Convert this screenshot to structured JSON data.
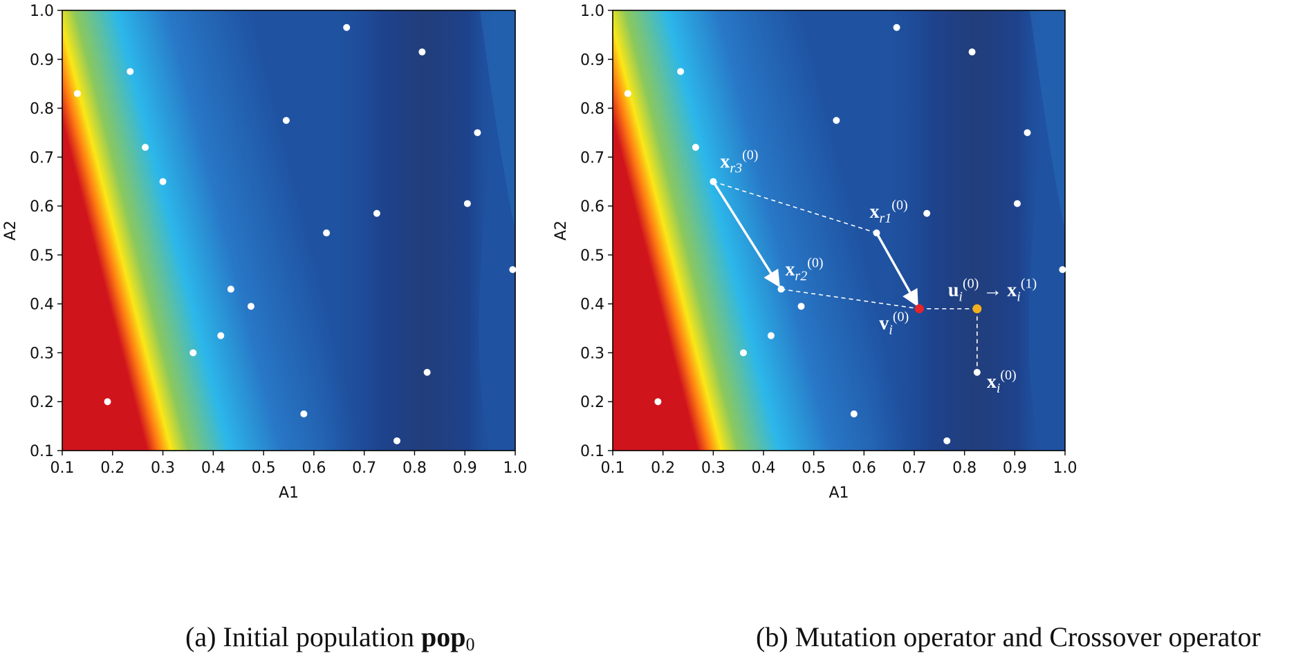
{
  "chart_data": [
    {
      "type": "scatter",
      "subtype": "contour-background",
      "panel": "a",
      "xlabel": "A1",
      "ylabel": "A2",
      "xlim": [
        0.1,
        1.0
      ],
      "ylim": [
        0.1,
        1.0
      ],
      "xticks": [
        "0.1",
        "0.2",
        "0.3",
        "0.4",
        "0.5",
        "0.6",
        "0.7",
        "0.8",
        "0.9",
        "1.0"
      ],
      "yticks": [
        "0.1",
        "0.2",
        "0.3",
        "0.4",
        "0.5",
        "0.6",
        "0.7",
        "0.8",
        "0.9",
        "1.0"
      ],
      "grid": false,
      "colormap": [
        "#d0141c",
        "#ff7d12",
        "#fbe717",
        "#8cc85c",
        "#2cb7ea",
        "#2877c6",
        "#1f53a2",
        "#1e3f88",
        "#223a74"
      ],
      "point_color": "#ffffff",
      "points": [
        [
          0.13,
          0.83
        ],
        [
          0.235,
          0.875
        ],
        [
          0.265,
          0.72
        ],
        [
          0.3,
          0.65
        ],
        [
          0.19,
          0.2
        ],
        [
          0.36,
          0.3
        ],
        [
          0.415,
          0.335
        ],
        [
          0.435,
          0.43
        ],
        [
          0.475,
          0.395
        ],
        [
          0.545,
          0.775
        ],
        [
          0.58,
          0.175
        ],
        [
          0.625,
          0.545
        ],
        [
          0.665,
          0.965
        ],
        [
          0.725,
          0.585
        ],
        [
          0.765,
          0.12
        ],
        [
          0.815,
          0.915
        ],
        [
          0.825,
          0.26
        ],
        [
          0.905,
          0.605
        ],
        [
          0.925,
          0.75
        ],
        [
          0.995,
          0.47
        ]
      ]
    },
    {
      "type": "scatter",
      "subtype": "contour-background",
      "panel": "b",
      "xlabel": "A1",
      "ylabel": "A2",
      "xlim": [
        0.1,
        1.0
      ],
      "ylim": [
        0.1,
        1.0
      ],
      "xticks": [
        "0.1",
        "0.2",
        "0.3",
        "0.4",
        "0.5",
        "0.6",
        "0.7",
        "0.8",
        "0.9",
        "1.0"
      ],
      "yticks": [
        "0.1",
        "0.2",
        "0.3",
        "0.4",
        "0.5",
        "0.6",
        "0.7",
        "0.8",
        "0.9",
        "1.0"
      ],
      "grid": false,
      "colormap": [
        "#d0141c",
        "#ff7d12",
        "#fbe717",
        "#8cc85c",
        "#2cb7ea",
        "#2877c6",
        "#1f53a2",
        "#1e3f88",
        "#223a74"
      ],
      "point_color": "#ffffff",
      "points": [
        [
          0.13,
          0.83
        ],
        [
          0.235,
          0.875
        ],
        [
          0.265,
          0.72
        ],
        [
          0.19,
          0.2
        ],
        [
          0.36,
          0.3
        ],
        [
          0.415,
          0.335
        ],
        [
          0.475,
          0.395
        ],
        [
          0.545,
          0.775
        ],
        [
          0.58,
          0.175
        ],
        [
          0.665,
          0.965
        ],
        [
          0.725,
          0.585
        ],
        [
          0.765,
          0.12
        ],
        [
          0.815,
          0.915
        ],
        [
          0.905,
          0.605
        ],
        [
          0.925,
          0.75
        ],
        [
          0.995,
          0.47
        ]
      ],
      "special_points": [
        {
          "id": "xr3",
          "x": 0.3,
          "y": 0.65,
          "color": "#ffffff",
          "label_main": "x",
          "label_sub": "r3",
          "label_sup": "(0)"
        },
        {
          "id": "xr1",
          "x": 0.625,
          "y": 0.545,
          "color": "#ffffff",
          "label_main": "x",
          "label_sub": "r1",
          "label_sup": "(0)"
        },
        {
          "id": "xr2",
          "x": 0.435,
          "y": 0.43,
          "color": "#ffffff",
          "label_main": "x",
          "label_sub": "r2",
          "label_sup": "(0)"
        },
        {
          "id": "vi",
          "x": 0.71,
          "y": 0.39,
          "color": "#e8232a",
          "label_main": "v",
          "label_sub": "i",
          "label_sup": "(0)"
        },
        {
          "id": "ui",
          "x": 0.825,
          "y": 0.39,
          "color": "#f2b01e",
          "label_main": "u",
          "label_sub": "i",
          "label_sup": "(0)",
          "label_suffix": "→ x",
          "label_suffix_sub": "i",
          "label_suffix_sup": "(1)"
        },
        {
          "id": "xi",
          "x": 0.825,
          "y": 0.26,
          "color": "#ffffff",
          "label_main": "x",
          "label_sub": "i",
          "label_sup": "(0)"
        }
      ],
      "arrows": [
        {
          "from": [
            0.3,
            0.65
          ],
          "to": [
            0.435,
            0.43
          ]
        },
        {
          "from": [
            0.625,
            0.545
          ],
          "to": [
            0.71,
            0.39
          ]
        }
      ],
      "dashed_lines": [
        {
          "from": [
            0.3,
            0.65
          ],
          "to": [
            0.625,
            0.545
          ]
        },
        {
          "from": [
            0.435,
            0.43
          ],
          "to": [
            0.71,
            0.39
          ]
        },
        {
          "from": [
            0.71,
            0.39
          ],
          "to": [
            0.825,
            0.39
          ]
        },
        {
          "from": [
            0.825,
            0.39
          ],
          "to": [
            0.825,
            0.26
          ]
        }
      ]
    }
  ],
  "captions": {
    "a_prefix": "(a) Initial population ",
    "a_bold": "pop",
    "a_sub": "0",
    "b": "(b) Mutation operator and Crossover operator"
  }
}
